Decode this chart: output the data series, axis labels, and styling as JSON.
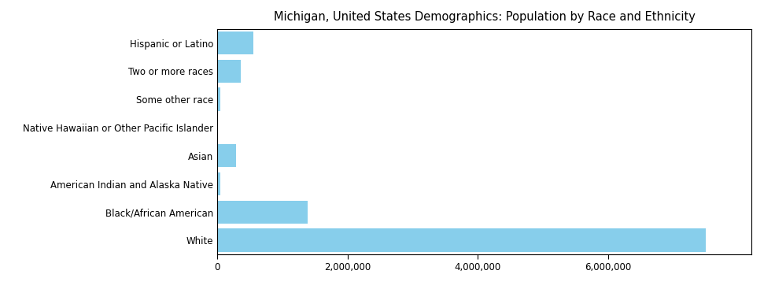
{
  "title": "Michigan, United States Demographics: Population by Race and Ethnicity",
  "categories": [
    "White",
    "Black/African American",
    "American Indian and Alaska Native",
    "Asian",
    "Native Hawaiian or Other Pacific Islander",
    "Some other race",
    "Two or more races",
    "Hispanic or Latino"
  ],
  "values": [
    7500000,
    1390000,
    49000,
    295000,
    11000,
    52000,
    370000,
    560000
  ],
  "bar_color": "#87CEEB",
  "xlim": [
    0,
    8200000
  ],
  "xticks": [
    0,
    2000000,
    4000000,
    6000000
  ],
  "xtick_labels": [
    "0",
    "2,000,000",
    "4,000,000",
    "6,000,000"
  ],
  "background_color": "#ffffff",
  "title_fontsize": 10.5,
  "label_fontsize": 8.5,
  "bar_height": 0.82
}
